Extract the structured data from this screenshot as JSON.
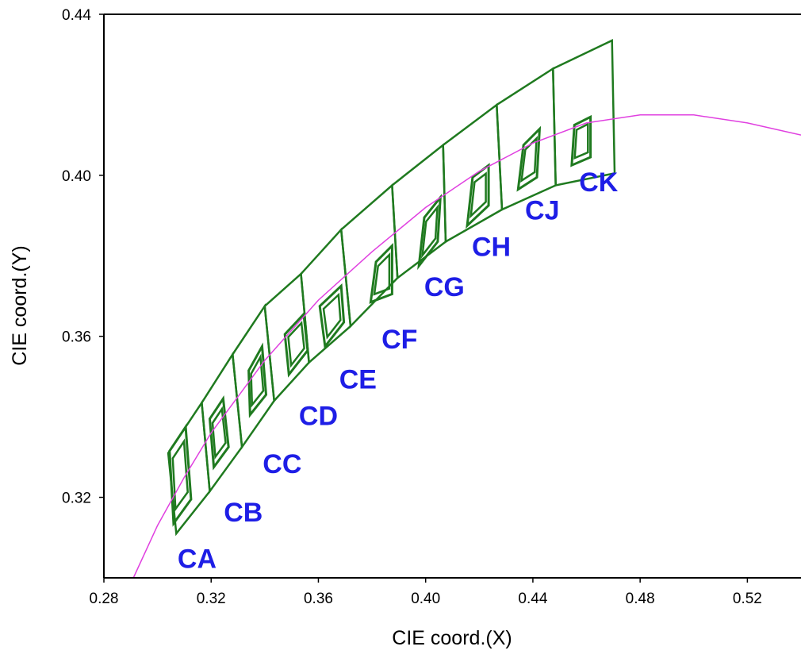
{
  "chart_data": {
    "type": "scatter",
    "title": "",
    "xlabel": "CIE coord.(X)",
    "ylabel": "CIE coord.(Y)",
    "xlim": [
      0.28,
      0.54
    ],
    "ylim": [
      0.3,
      0.44
    ],
    "x_ticks": [
      "0.28",
      "0.32",
      "0.36",
      "0.40",
      "0.44",
      "0.48",
      "0.52"
    ],
    "y_ticks": [
      "0.32",
      "0.36",
      "0.40",
      "0.44"
    ],
    "grid": false,
    "colors": {
      "bins": "#1f7a1f",
      "locus": "#e040e0",
      "labels": "#1e1ee6",
      "axis": "#000000"
    },
    "locus": {
      "name": "",
      "x": [
        0.291,
        0.3,
        0.31,
        0.32,
        0.33,
        0.34,
        0.36,
        0.38,
        0.4,
        0.42,
        0.44,
        0.46,
        0.48,
        0.5,
        0.52,
        0.54
      ],
      "y": [
        0.3,
        0.313,
        0.325,
        0.336,
        0.345,
        0.354,
        0.369,
        0.381,
        0.392,
        0.401,
        0.408,
        0.413,
        0.415,
        0.415,
        0.413,
        0.41
      ]
    },
    "bins": [
      {
        "label": "CA",
        "outer": [
          [
            0.304,
            0.331
          ],
          [
            0.3165,
            0.3435
          ],
          [
            0.3195,
            0.3215
          ],
          [
            0.307,
            0.311
          ]
        ],
        "inner": [
          [
            0.3045,
            0.3315
          ],
          [
            0.3105,
            0.3375
          ],
          [
            0.3125,
            0.3195
          ],
          [
            0.306,
            0.3135
          ]
        ]
      },
      {
        "label": "CB",
        "outer": [
          [
            0.3165,
            0.3435
          ],
          [
            0.328,
            0.3555
          ],
          [
            0.3315,
            0.3325
          ],
          [
            0.3195,
            0.3215
          ]
        ],
        "inner": [
          [
            0.3195,
            0.3395
          ],
          [
            0.3245,
            0.3445
          ],
          [
            0.3265,
            0.3325
          ],
          [
            0.321,
            0.3275
          ]
        ]
      },
      {
        "label": "CC",
        "outer": [
          [
            0.328,
            0.3555
          ],
          [
            0.34,
            0.3675
          ],
          [
            0.3435,
            0.344
          ],
          [
            0.3315,
            0.3325
          ]
        ],
        "inner": [
          [
            0.334,
            0.3515
          ],
          [
            0.339,
            0.3575
          ],
          [
            0.3405,
            0.3455
          ],
          [
            0.3345,
            0.3405
          ]
        ]
      },
      {
        "label": "CD",
        "outer": [
          [
            0.34,
            0.3675
          ],
          [
            0.3535,
            0.3755
          ],
          [
            0.3565,
            0.3535
          ],
          [
            0.3435,
            0.344
          ]
        ],
        "inner": [
          [
            0.3475,
            0.3605
          ],
          [
            0.3545,
            0.3655
          ],
          [
            0.356,
            0.3565
          ],
          [
            0.349,
            0.3505
          ]
        ]
      },
      {
        "label": "CE",
        "outer": [
          [
            0.3535,
            0.3755
          ],
          [
            0.3685,
            0.3865
          ],
          [
            0.372,
            0.3625
          ],
          [
            0.3565,
            0.3535
          ]
        ],
        "inner": [
          [
            0.3605,
            0.3675
          ],
          [
            0.3685,
            0.3725
          ],
          [
            0.3695,
            0.3635
          ],
          [
            0.3625,
            0.3575
          ]
        ]
      },
      {
        "label": "CF",
        "outer": [
          [
            0.3685,
            0.3865
          ],
          [
            0.3875,
            0.3975
          ],
          [
            0.3895,
            0.3745
          ],
          [
            0.372,
            0.3625
          ]
        ],
        "inner": [
          [
            0.3815,
            0.3785
          ],
          [
            0.3875,
            0.3825
          ],
          [
            0.3875,
            0.3705
          ],
          [
            0.3795,
            0.3685
          ]
        ]
      },
      {
        "label": "CG",
        "outer": [
          [
            0.3875,
            0.3975
          ],
          [
            0.4065,
            0.4075
          ],
          [
            0.4075,
            0.3835
          ],
          [
            0.3895,
            0.3745
          ]
        ],
        "inner": [
          [
            0.3995,
            0.3895
          ],
          [
            0.4055,
            0.3945
          ],
          [
            0.4045,
            0.3835
          ],
          [
            0.3975,
            0.3775
          ]
        ]
      },
      {
        "label": "CH",
        "outer": [
          [
            0.4065,
            0.4075
          ],
          [
            0.4265,
            0.4175
          ],
          [
            0.4285,
            0.3915
          ],
          [
            0.4075,
            0.3835
          ]
        ],
        "inner": [
          [
            0.4175,
            0.3995
          ],
          [
            0.4235,
            0.4025
          ],
          [
            0.4235,
            0.3925
          ],
          [
            0.4155,
            0.3875
          ]
        ]
      },
      {
        "label": "CJ",
        "outer": [
          [
            0.4265,
            0.4175
          ],
          [
            0.4475,
            0.4265
          ],
          [
            0.4485,
            0.3975
          ],
          [
            0.4285,
            0.3915
          ]
        ],
        "inner": [
          [
            0.4365,
            0.4075
          ],
          [
            0.4425,
            0.4115
          ],
          [
            0.4415,
            0.3995
          ],
          [
            0.4345,
            0.3965
          ]
        ]
      },
      {
        "label": "CK",
        "outer": [
          [
            0.4475,
            0.4265
          ],
          [
            0.4695,
            0.4335
          ],
          [
            0.4705,
            0.4005
          ],
          [
            0.4485,
            0.3975
          ]
        ],
        "inner": [
          [
            0.4555,
            0.4125
          ],
          [
            0.4615,
            0.4145
          ],
          [
            0.4615,
            0.4045
          ],
          [
            0.4545,
            0.4025
          ]
        ]
      }
    ]
  }
}
